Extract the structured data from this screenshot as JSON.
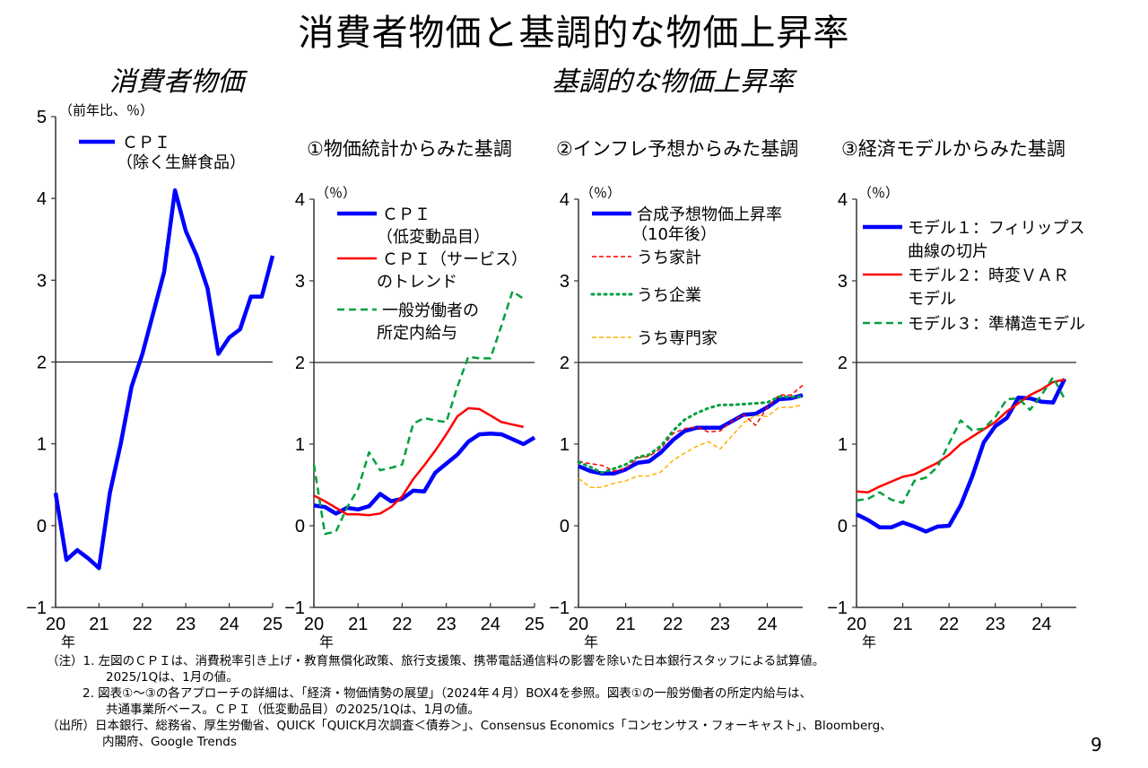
{
  "title": "消費者物価と基調的な物価上昇率",
  "subtitles": {
    "left": "消費者物価",
    "right": "基調的な物価上昇率"
  },
  "chart_data": [
    {
      "id": "cpi",
      "type": "line",
      "title": "",
      "ylabel": "（前年比、％）",
      "xlabel": "年",
      "ylim": [
        -1,
        5
      ],
      "yticks": [
        -1,
        0,
        1,
        2,
        3,
        4,
        5
      ],
      "xlim": [
        20,
        25
      ],
      "xticks": [
        20,
        21,
        22,
        23,
        24,
        25
      ],
      "xtick_labels": [
        "20",
        "21",
        "22",
        "23",
        "24",
        "25"
      ],
      "reference_line": 2,
      "legend": "top-left",
      "series": [
        {
          "name": "ＣＰＩ",
          "name2": "（除く生鮮食品）",
          "color": "#0000ff",
          "style": "solid-thick",
          "x_start": 20,
          "x_step": 0.25,
          "values": [
            0.4,
            -0.42,
            -0.3,
            -0.4,
            -0.52,
            0.4,
            1.0,
            1.7,
            2.1,
            2.6,
            3.1,
            4.1,
            3.6,
            3.3,
            2.9,
            2.1,
            2.3,
            2.4,
            2.8,
            2.8,
            3.3
          ]
        }
      ]
    },
    {
      "id": "approach1",
      "type": "line",
      "title": "①物価統計からみた基調",
      "ylabel": "（％）",
      "xlabel": "年",
      "ylim": [
        -1,
        4
      ],
      "yticks": [
        -1,
        0,
        1,
        2,
        3,
        4
      ],
      "xlim": [
        20,
        25
      ],
      "xticks": [
        20,
        21,
        22,
        23,
        24,
        25
      ],
      "xtick_labels": [
        "20",
        "21",
        "22",
        "23",
        "24",
        "25"
      ],
      "reference_line": 2,
      "legend": "top-left",
      "series": [
        {
          "name": "ＣＰＩ",
          "name2": "（低変動品目）",
          "color": "#0000ff",
          "style": "solid-thick",
          "x_start": 20,
          "x_step": 0.25,
          "values": [
            0.25,
            0.23,
            0.15,
            0.22,
            0.2,
            0.24,
            0.39,
            0.3,
            0.33,
            0.43,
            0.42,
            0.65,
            0.76,
            0.87,
            1.03,
            1.12,
            1.13,
            1.12,
            1.06,
            1.0,
            1.08
          ]
        },
        {
          "name": "ＣＰＩ（サービス）",
          "name2": "のトレンド",
          "color": "#ff0000",
          "style": "solid",
          "x_start": 20,
          "x_step": 0.25,
          "values": [
            0.37,
            0.3,
            0.22,
            0.14,
            0.14,
            0.13,
            0.15,
            0.23,
            0.36,
            0.57,
            0.74,
            0.92,
            1.12,
            1.34,
            1.44,
            1.43,
            1.35,
            1.27,
            1.24,
            1.21
          ]
        },
        {
          "name": "一般労働者の",
          "name2": "所定内給与",
          "color": "#00a040",
          "style": "dashed",
          "x_start": 20,
          "x_step": 0.25,
          "values": [
            0.75,
            -0.1,
            -0.07,
            0.22,
            0.45,
            0.9,
            0.68,
            0.71,
            0.75,
            1.25,
            1.32,
            1.29,
            1.27,
            1.7,
            2.07,
            2.05,
            2.05,
            2.45,
            2.87,
            2.78
          ]
        }
      ]
    },
    {
      "id": "approach2",
      "type": "line",
      "title": "②インフレ予想からみた基調",
      "ylabel": "（％）",
      "xlabel": "年",
      "ylim": [
        -1,
        4
      ],
      "yticks": [
        -1,
        0,
        1,
        2,
        3,
        4
      ],
      "xlim": [
        20,
        24.75
      ],
      "xticks": [
        20,
        21,
        22,
        23,
        24
      ],
      "xtick_labels": [
        "20",
        "21",
        "22",
        "23",
        "24"
      ],
      "reference_line": 2,
      "legend": "top-left",
      "series": [
        {
          "name": "合成予想物価上昇率",
          "name2": "（10年後）",
          "color": "#0000ff",
          "style": "solid-thick",
          "x_start": 20,
          "x_step": 0.25,
          "values": [
            0.73,
            0.67,
            0.64,
            0.64,
            0.69,
            0.77,
            0.79,
            0.9,
            1.05,
            1.16,
            1.2,
            1.2,
            1.2,
            1.28,
            1.36,
            1.37,
            1.45,
            1.55,
            1.56,
            1.6
          ]
        },
        {
          "name": "うち家計",
          "name2": "",
          "color": "#ff0000",
          "style": "dashed-thin",
          "x_start": 20,
          "x_step": 0.25,
          "values": [
            0.79,
            0.76,
            0.74,
            0.67,
            0.7,
            0.83,
            0.85,
            0.95,
            1.13,
            1.19,
            1.21,
            1.15,
            1.16,
            1.28,
            1.36,
            1.23,
            1.45,
            1.6,
            1.6,
            1.72
          ]
        },
        {
          "name": "うち企業",
          "name2": "",
          "color": "#00a040",
          "style": "dotted",
          "x_start": 20,
          "x_step": 0.25,
          "values": [
            0.78,
            0.72,
            0.65,
            0.7,
            0.75,
            0.84,
            0.87,
            0.98,
            1.16,
            1.3,
            1.38,
            1.44,
            1.48,
            1.48,
            1.49,
            1.5,
            1.51,
            1.58,
            1.58,
            1.58
          ]
        },
        {
          "name": "うち専門家",
          "name2": "",
          "color": "#ffb000",
          "style": "dashed-thin",
          "x_start": 20,
          "x_step": 0.25,
          "values": [
            0.58,
            0.47,
            0.47,
            0.52,
            0.55,
            0.61,
            0.61,
            0.66,
            0.8,
            0.89,
            0.97,
            1.03,
            0.94,
            1.1,
            1.26,
            1.35,
            1.34,
            1.45,
            1.45,
            1.48
          ]
        }
      ]
    },
    {
      "id": "approach3",
      "type": "line",
      "title": "③経済モデルからみた基調",
      "ylabel": "（％）",
      "xlabel": "年",
      "ylim": [
        -1,
        4
      ],
      "yticks": [
        -1,
        0,
        1,
        2,
        3,
        4
      ],
      "xlim": [
        20,
        24.75
      ],
      "xticks": [
        20,
        21,
        22,
        23,
        24
      ],
      "xtick_labels": [
        "20",
        "21",
        "22",
        "23",
        "24"
      ],
      "reference_line": 2,
      "legend": "top-left",
      "series": [
        {
          "name": "モデル１：フィリップス",
          "name2": "曲線の切片",
          "color": "#0000ff",
          "style": "solid-thick",
          "x_start": 20,
          "x_step": 0.25,
          "values": [
            0.14,
            0.07,
            -0.02,
            -0.02,
            0.04,
            -0.01,
            -0.07,
            -0.01,
            0.0,
            0.25,
            0.6,
            1.02,
            1.22,
            1.32,
            1.57,
            1.56,
            1.52,
            1.51,
            1.8
          ]
        },
        {
          "name": "モデル２：時変ＶＡＲ",
          "name2": "モデル",
          "color": "#ff0000",
          "style": "solid",
          "x_start": 20,
          "x_step": 0.25,
          "values": [
            0.42,
            0.41,
            0.48,
            0.54,
            0.6,
            0.63,
            0.7,
            0.77,
            0.87,
            1.0,
            1.09,
            1.18,
            1.27,
            1.4,
            1.5,
            1.6,
            1.67,
            1.76,
            1.79
          ]
        },
        {
          "name": "モデル３：準構造モデル",
          "name2": "",
          "color": "#00a040",
          "style": "dashed",
          "x_start": 20,
          "x_step": 0.25,
          "values": [
            0.31,
            0.33,
            0.41,
            0.32,
            0.28,
            0.55,
            0.59,
            0.72,
            1.01,
            1.29,
            1.17,
            1.19,
            1.33,
            1.55,
            1.56,
            1.42,
            1.6,
            1.82,
            1.55
          ]
        }
      ]
    }
  ],
  "notes": [
    "（注）1. 左図のＣＰＩは、消費税率引き上げ・教育無償化政策、旅行支援策、携帯電話通信料の影響を除いた日本銀行スタッフによる試算値。",
    "2025/1Qは、1月の値。",
    "2. 図表①～③の各アプローチの詳細は、「経済・物価情勢の展望」（2024年４月）BOX4を参照。図表①の一般労働者の所定内給与は、",
    "共通事業所ベース。ＣＰＩ（低変動品目）の2025/1Qは、1月の値。",
    "（出所）日本銀行、総務省、厚生労働省、QUICK「QUICK月次調査＜債券＞」、Consensus Economics「コンセンサス・フォーキャスト」、Bloomberg、",
    "内閣府、Google Trends"
  ],
  "page_number": "9"
}
